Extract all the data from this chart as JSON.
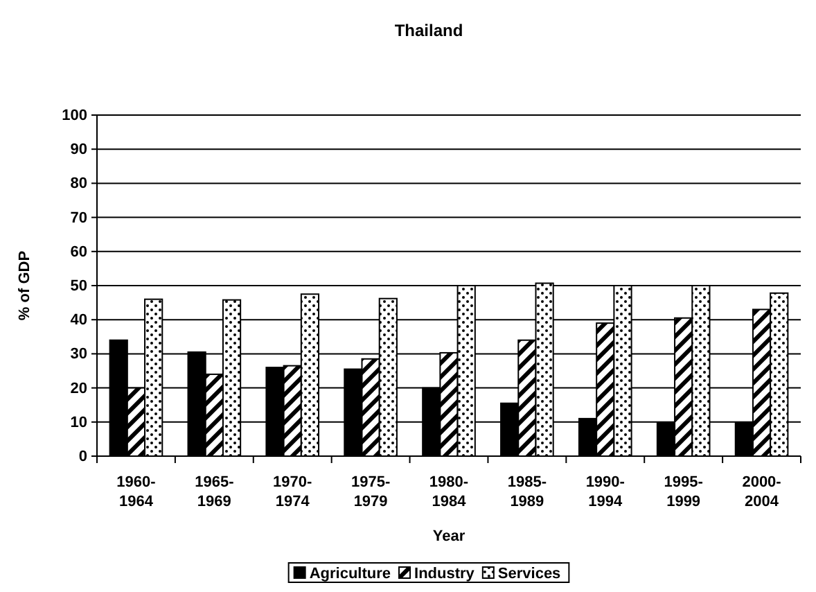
{
  "chart_data": {
    "type": "bar",
    "title": "Thailand",
    "xlabel": "Year",
    "ylabel": "% of GDP",
    "categories": [
      "1960-1964",
      "1965-1969",
      "1970-1974",
      "1975-1979",
      "1980-1984",
      "1985-1989",
      "1990-1994",
      "1995-1999",
      "2000-2004"
    ],
    "series": [
      {
        "name": "Agriculture",
        "color": "#000000",
        "values": [
          34,
          30.5,
          26,
          25.5,
          20,
          15.5,
          11,
          9.8,
          9.8
        ]
      },
      {
        "name": "Industry",
        "color": "#000000",
        "values": [
          20,
          24,
          26.5,
          28.5,
          30.3,
          34,
          39,
          40.5,
          43
        ]
      },
      {
        "name": "Services",
        "color": "#000000",
        "values": [
          46,
          45.8,
          47.5,
          46.2,
          50,
          50.7,
          50,
          50,
          47.8
        ]
      }
    ],
    "ylim": [
      0,
      100
    ],
    "yticks": [
      0,
      10,
      20,
      30,
      40,
      50,
      60,
      70,
      80,
      90,
      100
    ],
    "grid": "y",
    "legend": "bottom"
  }
}
